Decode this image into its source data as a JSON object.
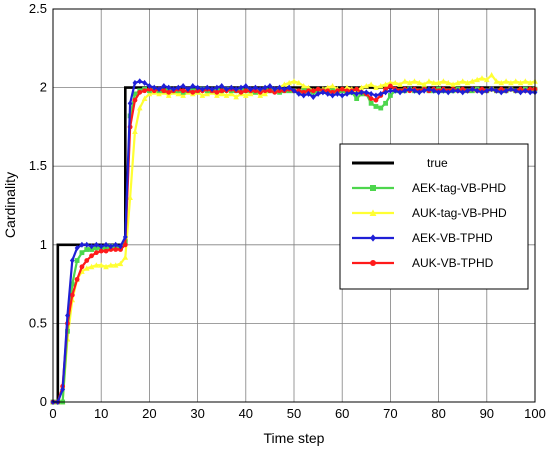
{
  "chart_data": {
    "type": "line",
    "xlabel": "Time step",
    "ylabel": "Cardinality",
    "xlim": [
      0,
      100
    ],
    "ylim": [
      0,
      2.5
    ],
    "xticks": [
      "0",
      "10",
      "20",
      "30",
      "40",
      "50",
      "60",
      "70",
      "80",
      "90",
      "100"
    ],
    "yticks": [
      "0",
      "0.5",
      "1",
      "1.5",
      "2",
      "2.5"
    ],
    "grid": true,
    "legend_position": "center-right",
    "series": [
      {
        "name": "true",
        "color": "#000000",
        "marker": "none",
        "x": [
          0,
          1,
          2,
          3,
          4,
          5,
          6,
          7,
          8,
          9,
          10,
          11,
          12,
          13,
          14,
          15,
          16,
          17,
          18,
          19,
          20,
          21,
          22,
          23,
          24,
          25,
          26,
          27,
          28,
          29,
          30,
          31,
          32,
          33,
          34,
          35,
          36,
          37,
          38,
          39,
          40,
          41,
          42,
          43,
          44,
          45,
          46,
          47,
          48,
          49,
          50,
          51,
          52,
          53,
          54,
          55,
          56,
          57,
          58,
          59,
          60,
          61,
          62,
          63,
          64,
          65,
          66,
          67,
          68,
          69,
          70,
          71,
          72,
          73,
          74,
          75,
          76,
          77,
          78,
          79,
          80,
          81,
          82,
          83,
          84,
          85,
          86,
          87,
          88,
          89,
          90,
          91,
          92,
          93,
          94,
          95,
          96,
          97,
          98,
          99,
          100
        ],
        "y": [
          0,
          1,
          1,
          1,
          1,
          1,
          1,
          1,
          1,
          1,
          1,
          1,
          1,
          1,
          1,
          2,
          2,
          2,
          2,
          2,
          2,
          2,
          2,
          2,
          2,
          2,
          2,
          2,
          2,
          2,
          2,
          2,
          2,
          2,
          2,
          2,
          2,
          2,
          2,
          2,
          2,
          2,
          2,
          2,
          2,
          2,
          2,
          2,
          2,
          2,
          2,
          2,
          2,
          2,
          2,
          2,
          2,
          2,
          2,
          2,
          2,
          2,
          2,
          2,
          2,
          2,
          2,
          2,
          2,
          2,
          2,
          2,
          2,
          2,
          2,
          2,
          2,
          2,
          2,
          2,
          2,
          2,
          2,
          2,
          2,
          2,
          2,
          2,
          2,
          2,
          2,
          2,
          2,
          2,
          2,
          2,
          2,
          2,
          2,
          2,
          2
        ]
      },
      {
        "name": "AEK-tag-VB-PHD",
        "color": "#4dd64d",
        "marker": "square",
        "x": [
          0,
          1,
          2,
          3,
          4,
          5,
          6,
          7,
          8,
          9,
          10,
          11,
          12,
          13,
          14,
          15,
          16,
          17,
          18,
          19,
          20,
          21,
          22,
          23,
          24,
          25,
          26,
          27,
          28,
          29,
          30,
          31,
          32,
          33,
          34,
          35,
          36,
          37,
          38,
          39,
          40,
          41,
          42,
          43,
          44,
          45,
          46,
          47,
          48,
          49,
          50,
          51,
          52,
          53,
          54,
          55,
          56,
          57,
          58,
          59,
          60,
          61,
          62,
          63,
          64,
          65,
          66,
          67,
          68,
          69,
          70,
          71,
          72,
          73,
          74,
          75,
          76,
          77,
          78,
          79,
          80,
          81,
          82,
          83,
          84,
          85,
          86,
          87,
          88,
          89,
          90,
          91,
          92,
          93,
          94,
          95,
          96,
          97,
          98,
          99,
          100
        ],
        "y": [
          0,
          0,
          0,
          0.45,
          0.75,
          0.9,
          0.95,
          0.97,
          0.97,
          0.98,
          0.98,
          0.98,
          0.99,
          0.98,
          0.98,
          1.02,
          1.82,
          1.96,
          1.98,
          1.99,
          1.98,
          1.99,
          1.98,
          1.98,
          1.99,
          1.98,
          1.98,
          1.97,
          1.98,
          1.98,
          1.98,
          1.99,
          1.98,
          1.98,
          1.99,
          1.98,
          1.99,
          1.98,
          1.98,
          1.99,
          1.98,
          1.98,
          1.97,
          1.98,
          1.99,
          1.98,
          1.98,
          1.97,
          1.98,
          1.98,
          1.98,
          1.97,
          1.98,
          1.98,
          1.97,
          1.98,
          1.98,
          1.97,
          1.98,
          1.97,
          1.98,
          1.97,
          1.97,
          1.93,
          1.96,
          1.96,
          1.9,
          1.88,
          1.87,
          1.9,
          1.95,
          1.98,
          1.98,
          1.98,
          1.99,
          1.98,
          1.98,
          1.99,
          1.98,
          1.98,
          1.99,
          1.98,
          1.98,
          1.98,
          1.99,
          1.98,
          1.98,
          1.98,
          1.99,
          1.98,
          1.98,
          1.99,
          1.98,
          1.98,
          1.98,
          1.99,
          1.98,
          1.98,
          1.99,
          1.98,
          1.99
        ]
      },
      {
        "name": "AUK-tag-VB-PHD",
        "color": "#ffff33",
        "marker": "triangle",
        "x": [
          0,
          1,
          2,
          3,
          4,
          5,
          6,
          7,
          8,
          9,
          10,
          11,
          12,
          13,
          14,
          15,
          16,
          17,
          18,
          19,
          20,
          21,
          22,
          23,
          24,
          25,
          26,
          27,
          28,
          29,
          30,
          31,
          32,
          33,
          34,
          35,
          36,
          37,
          38,
          39,
          40,
          41,
          42,
          43,
          44,
          45,
          46,
          47,
          48,
          49,
          50,
          51,
          52,
          53,
          54,
          55,
          56,
          57,
          58,
          59,
          60,
          61,
          62,
          63,
          64,
          65,
          66,
          67,
          68,
          69,
          70,
          71,
          72,
          73,
          74,
          75,
          76,
          77,
          78,
          79,
          80,
          81,
          82,
          83,
          84,
          85,
          86,
          87,
          88,
          89,
          90,
          91,
          92,
          93,
          94,
          95,
          96,
          97,
          98,
          99,
          100
        ],
        "y": [
          0,
          0,
          0,
          0.4,
          0.65,
          0.78,
          0.83,
          0.85,
          0.86,
          0.87,
          0.87,
          0.86,
          0.87,
          0.87,
          0.88,
          0.92,
          1.3,
          1.72,
          1.87,
          1.93,
          1.96,
          1.97,
          1.96,
          1.97,
          1.95,
          1.97,
          1.96,
          1.95,
          1.97,
          1.96,
          1.97,
          1.95,
          1.96,
          1.97,
          1.95,
          1.96,
          1.95,
          1.96,
          1.94,
          1.96,
          1.95,
          1.96,
          1.97,
          1.95,
          1.96,
          1.98,
          1.99,
          2.0,
          2.02,
          2.03,
          2.04,
          2.03,
          2.01,
          2.0,
          1.98,
          1.97,
          1.99,
          2.0,
          2.01,
          1.99,
          1.98,
          2.0,
          1.99,
          1.98,
          2.0,
          2.01,
          2.02,
          2.0,
          2.01,
          2.02,
          2.03,
          2.03,
          2.02,
          2.04,
          2.03,
          2.04,
          2.03,
          2.02,
          2.04,
          2.03,
          2.03,
          2.04,
          2.03,
          2.02,
          2.03,
          2.04,
          2.03,
          2.04,
          2.05,
          2.06,
          2.05,
          2.08,
          2.04,
          2.03,
          2.04,
          2.03,
          2.04,
          2.03,
          2.04,
          2.03,
          2.04
        ]
      },
      {
        "name": "AEK-VB-TPHD",
        "color": "#1f1fd6",
        "marker": "diamond",
        "x": [
          0,
          1,
          2,
          3,
          4,
          5,
          6,
          7,
          8,
          9,
          10,
          11,
          12,
          13,
          14,
          15,
          16,
          17,
          18,
          19,
          20,
          21,
          22,
          23,
          24,
          25,
          26,
          27,
          28,
          29,
          30,
          31,
          32,
          33,
          34,
          35,
          36,
          37,
          38,
          39,
          40,
          41,
          42,
          43,
          44,
          45,
          46,
          47,
          48,
          49,
          50,
          51,
          52,
          53,
          54,
          55,
          56,
          57,
          58,
          59,
          60,
          61,
          62,
          63,
          64,
          65,
          66,
          67,
          68,
          69,
          70,
          71,
          72,
          73,
          74,
          75,
          76,
          77,
          78,
          79,
          80,
          81,
          82,
          83,
          84,
          85,
          86,
          87,
          88,
          89,
          90,
          91,
          92,
          93,
          94,
          95,
          96,
          97,
          98,
          99,
          100
        ],
        "y": [
          0,
          0,
          0.08,
          0.55,
          0.9,
          0.98,
          1.0,
          1.0,
          0.99,
          1.0,
          0.99,
          1.0,
          0.99,
          1.0,
          0.99,
          1.05,
          1.9,
          2.03,
          2.04,
          2.03,
          2.01,
          2.0,
          1.99,
          2.01,
          2.0,
          1.99,
          2.0,
          2.01,
          1.99,
          2.01,
          2.0,
          1.99,
          2.0,
          1.99,
          2.0,
          2.01,
          1.99,
          2.0,
          1.99,
          2.0,
          2.01,
          1.99,
          2.0,
          1.99,
          2.0,
          2.01,
          1.99,
          2.0,
          1.99,
          2.0,
          1.98,
          1.96,
          1.95,
          1.96,
          1.94,
          1.96,
          1.97,
          1.96,
          1.95,
          1.96,
          1.95,
          1.96,
          1.97,
          1.96,
          1.97,
          1.97,
          1.96,
          1.95,
          1.96,
          1.97,
          1.98,
          1.98,
          1.97,
          1.98,
          1.99,
          1.98,
          1.97,
          1.98,
          1.99,
          1.98,
          1.97,
          1.98,
          1.97,
          1.98,
          1.98,
          1.97,
          1.98,
          1.99,
          1.98,
          1.97,
          1.98,
          1.99,
          1.98,
          1.97,
          1.98,
          1.99,
          1.98,
          1.97,
          1.98,
          1.97,
          1.97
        ]
      },
      {
        "name": "AUK-VB-TPHD",
        "color": "#ff1a1a",
        "marker": "circle",
        "x": [
          0,
          1,
          2,
          3,
          4,
          5,
          6,
          7,
          8,
          9,
          10,
          11,
          12,
          13,
          14,
          15,
          16,
          17,
          18,
          19,
          20,
          21,
          22,
          23,
          24,
          25,
          26,
          27,
          28,
          29,
          30,
          31,
          32,
          33,
          34,
          35,
          36,
          37,
          38,
          39,
          40,
          41,
          42,
          43,
          44,
          45,
          46,
          47,
          48,
          49,
          50,
          51,
          52,
          53,
          54,
          55,
          56,
          57,
          58,
          59,
          60,
          61,
          62,
          63,
          64,
          65,
          66,
          67,
          68,
          69,
          70,
          71,
          72,
          73,
          74,
          75,
          76,
          77,
          78,
          79,
          80,
          81,
          82,
          83,
          84,
          85,
          86,
          87,
          88,
          89,
          90,
          91,
          92,
          93,
          94,
          95,
          96,
          97,
          98,
          99,
          100
        ],
        "y": [
          0,
          0,
          0.1,
          0.5,
          0.68,
          0.78,
          0.86,
          0.9,
          0.93,
          0.95,
          0.96,
          0.96,
          0.97,
          0.97,
          0.97,
          1.0,
          1.75,
          1.92,
          1.97,
          1.98,
          1.99,
          1.98,
          1.99,
          1.98,
          1.97,
          1.98,
          1.99,
          1.98,
          1.98,
          1.97,
          1.98,
          1.98,
          1.99,
          1.98,
          1.97,
          1.98,
          1.98,
          1.99,
          1.98,
          1.97,
          1.98,
          1.98,
          1.98,
          1.97,
          1.98,
          1.98,
          1.97,
          1.98,
          1.98,
          1.99,
          1.98,
          1.98,
          1.97,
          1.98,
          1.98,
          1.99,
          1.98,
          1.98,
          1.97,
          1.98,
          1.99,
          1.98,
          1.98,
          1.99,
          1.97,
          1.96,
          1.93,
          1.92,
          1.95,
          1.99,
          2.01,
          1.99,
          1.98,
          1.99,
          1.98,
          1.99,
          1.98,
          1.99,
          1.98,
          1.99,
          1.98,
          1.99,
          1.98,
          1.99,
          1.98,
          1.99,
          1.98,
          1.99,
          1.98,
          1.99,
          1.98,
          1.99,
          1.98,
          1.99,
          1.98,
          1.99,
          1.98,
          1.99,
          1.98,
          1.99,
          1.99
        ]
      }
    ]
  }
}
